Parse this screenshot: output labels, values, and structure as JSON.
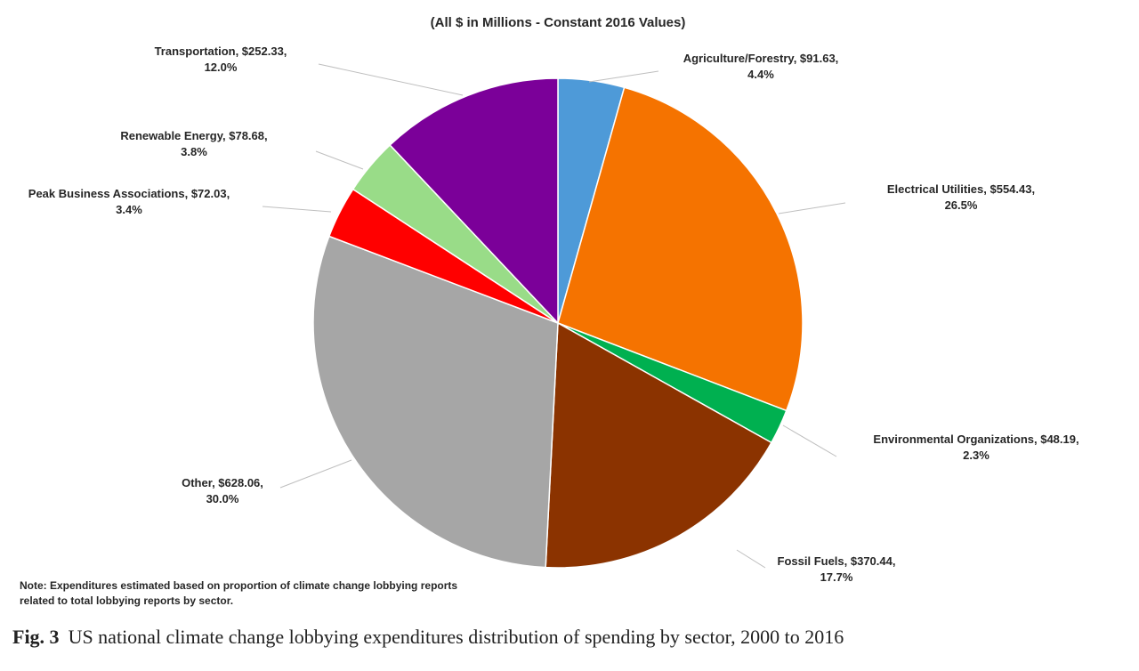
{
  "chart_data": {
    "type": "pie",
    "title": "(All $ in Millions - Constant 2016 Values)",
    "slices": [
      {
        "label": "Agriculture/Forestry",
        "value": 91.63,
        "value_text": "$91.63",
        "percent": 4.4,
        "percent_text": "4.4%",
        "color": "#4e9ad8"
      },
      {
        "label": "Electrical Utilities",
        "value": 554.43,
        "value_text": "$554.43",
        "percent": 26.5,
        "percent_text": "26.5%",
        "color": "#f57300"
      },
      {
        "label": "Environmental Organizations",
        "value": 48.19,
        "value_text": "$48.19",
        "percent": 2.3,
        "percent_text": "2.3%",
        "color": "#00b050"
      },
      {
        "label": "Fossil Fuels",
        "value": 370.44,
        "value_text": "$370.44",
        "percent": 17.7,
        "percent_text": "17.7%",
        "color": "#8b3300"
      },
      {
        "label": "Other",
        "value": 628.06,
        "value_text": "$628.06",
        "percent": 30.0,
        "percent_text": "30.0%",
        "color": "#a6a6a6"
      },
      {
        "label": "Peak Business Associations",
        "value": 72.03,
        "value_text": "$72.03",
        "percent": 3.4,
        "percent_text": "3.4%",
        "color": "#ff0000"
      },
      {
        "label": "Renewable Energy",
        "value": 78.68,
        "value_text": "$78.68",
        "percent": 3.8,
        "percent_text": "3.8%",
        "color": "#99dc88"
      },
      {
        "label": "Transportation",
        "value": 252.33,
        "value_text": "$252.33",
        "percent": 12.0,
        "percent_text": "12.0%",
        "color": "#7b0099"
      }
    ],
    "start_angle": "12 o'clock",
    "direction": "clockwise",
    "legend": "none"
  },
  "note": "Note: Expenditures estimated based on proportion of climate change lobbying reports related to total lobbying reports by sector.",
  "caption": {
    "label": "Fig. 3",
    "text": "US national climate change lobbying expenditures distribution of spending by sector, 2000 to 2016"
  }
}
